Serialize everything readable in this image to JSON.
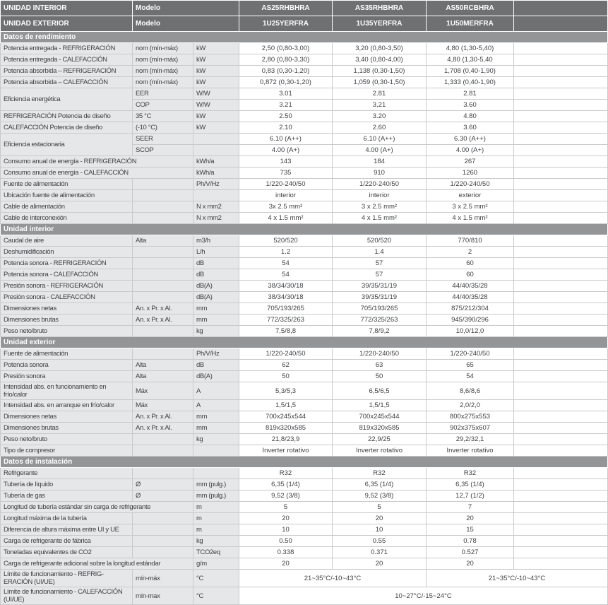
{
  "colors": {
    "header_bg": "#6e7072",
    "section_bg": "#939597",
    "label_bg": "#e6e7e8",
    "data_bg": "#ffffff",
    "border": "#c8cacc",
    "text": "#3f4144",
    "header_text": "#ffffff"
  },
  "table": {
    "rows": [
      {
        "t": "h",
        "label": "UNIDAD INTERIOR",
        "model": "Modelo",
        "values": [
          "AS25RHBHRA",
          "AS35RHBHRA",
          "AS50RCBHRA",
          ""
        ]
      },
      {
        "t": "h",
        "label": "UNIDAD EXTERIOR",
        "model": "Modelo",
        "values": [
          "1U25YERFRA",
          "1U35YERFRA",
          "1U50MERFRA",
          ""
        ]
      },
      {
        "t": "s",
        "label": "Datos de rendimiento"
      },
      {
        "label": "Potencia entregada - REFRIGERACIÓN",
        "sub": "nom (mín-máx)",
        "unit": "kW",
        "values": [
          "2,50 (0,80-3,00)",
          "3,20 (0,80-3,50)",
          "4,80 (1,30-5,40)",
          ""
        ]
      },
      {
        "label": "Potencia entregada - CALEFACCIÓN",
        "sub": "nom (mín-máx)",
        "unit": "kW",
        "values": [
          "2,80 (0,80-3,30)",
          "3,40 (0,80-4,00)",
          "4,80 (1,30-5,40",
          ""
        ]
      },
      {
        "label": "Potencia absorbida – REFRIGERACIÓN",
        "sub": "nom (mín-máx)",
        "unit": "kW",
        "values": [
          "0,83 (0,30-1,20)",
          "1,138 (0,30-1,50)",
          "1,708 (0,40-1,90)",
          ""
        ]
      },
      {
        "label": "Potencia absorbida – CALEFACCIÓN",
        "sub": "nom (mín-máx)",
        "unit": "kW",
        "values": [
          "0,872 (0,30-1,20)",
          "1,059 (0,30-1,50)",
          "1,333 (0,40-1,90)",
          ""
        ]
      },
      {
        "group": "start",
        "label": "Eficiencia energética",
        "sub": "EER",
        "unit": "W/W",
        "values": [
          "3.01",
          "2.81",
          "2.81",
          ""
        ]
      },
      {
        "group": "cont",
        "sub": "COP",
        "unit": "W/W",
        "values": [
          "3.21",
          "3,21",
          "3.60",
          ""
        ]
      },
      {
        "label": "REFRIGERACIÓN Potencia de diseño",
        "sub": "35 °C",
        "unit": "kW",
        "values": [
          "2.50",
          "3.20",
          "4.80",
          ""
        ]
      },
      {
        "label": "CALEFACCIÓN Potencia de diseño",
        "sub": "(-10 °C)",
        "unit": "kW",
        "values": [
          "2.10",
          "2.60",
          "3.60",
          ""
        ]
      },
      {
        "group": "start",
        "label": "Eficiencia estacionaria",
        "sub": "SEER",
        "unit": "",
        "values": [
          "6.10 (A++)",
          "6.10 (A++)",
          "6.30 (A++)",
          ""
        ]
      },
      {
        "group": "cont",
        "sub": "SCOP",
        "unit": "",
        "values": [
          "4.00 (A+)",
          "4.00 (A+)",
          "4.00 (A+)",
          ""
        ]
      },
      {
        "label": "Consumo anual de energía - REFRIGERACIÓN",
        "span2": true,
        "unit": "kWh/a",
        "values": [
          "143",
          "184",
          "267",
          ""
        ]
      },
      {
        "label": "Consumo anual de energía - CALEFACCIÓN",
        "span2": true,
        "unit": "kWh/a",
        "values": [
          "735",
          "910",
          "1260",
          ""
        ]
      },
      {
        "label": "Fuente de alimentación",
        "sub": "",
        "unit": "Ph/V/Hz",
        "values": [
          "1/220-240/50",
          "1/220-240/50",
          "1/220-240/50",
          ""
        ]
      },
      {
        "label": "Ubicación fuente de alimentación",
        "sub": "",
        "unit": "",
        "values": [
          "interior",
          "interior",
          "exterior",
          ""
        ]
      },
      {
        "label": "Cable de alimentación",
        "sub": "",
        "unit": "N x mm2",
        "values": [
          "3x 2.5 mm²",
          "3 x 2.5 mm²",
          "3 x 2.5 mm²",
          ""
        ]
      },
      {
        "label": "Cable de interconexión",
        "sub": "",
        "unit": "N x mm2",
        "values": [
          "4 x 1.5 mm²",
          "4 x 1.5 mm²",
          "4 x 1.5 mm²",
          ""
        ]
      },
      {
        "t": "s",
        "label": "Unidad interior"
      },
      {
        "label": "Caudal de aire",
        "sub": "Alta",
        "unit": "m3/h",
        "values": [
          "520/520",
          "520/520",
          "770/810",
          ""
        ]
      },
      {
        "label": "Deshumidificación",
        "sub": "",
        "unit": "L/h",
        "values": [
          "1.2",
          "1.4",
          "2",
          ""
        ]
      },
      {
        "label": "Potencia sonora - REFRIGERACIÓN",
        "sub": "",
        "unit": "dB",
        "values": [
          "54",
          "57",
          "60",
          ""
        ]
      },
      {
        "label": "Potencia sonora - CALEFACCIÓN",
        "sub": "",
        "unit": "dB",
        "values": [
          "54",
          "57",
          "60",
          ""
        ]
      },
      {
        "label": "Presión sonora - REFRIGERACIÓN",
        "sub": "",
        "unit": "dB(A)",
        "values": [
          "38/34/30/18",
          "39/35/31/19",
          "44/40/35/28",
          ""
        ]
      },
      {
        "label": "Presión sonora - CALEFACCIÓN",
        "sub": "",
        "unit": "dB(A)",
        "values": [
          "38/34/30/18",
          "39/35/31/19",
          "44/40/35/28",
          ""
        ]
      },
      {
        "label": "Dimensiones netas",
        "sub": "An. x Pr. x Al.",
        "unit": "mm",
        "values": [
          "705/193/265",
          "705/193/265",
          "875/212/304",
          ""
        ]
      },
      {
        "label": "Dimensiones brutas",
        "sub": "An. x Pr. x Al.",
        "unit": "mm",
        "values": [
          "772/325/263",
          "772/325/263",
          "945/390/296",
          ""
        ]
      },
      {
        "label": "Peso neto/bruto",
        "sub": "",
        "unit": "kg",
        "values": [
          "7,5/8,8",
          "7,8/9,2",
          "10,0/12,0",
          ""
        ]
      },
      {
        "t": "s",
        "label": "Unidad exterior"
      },
      {
        "label": "Fuente de alimentación",
        "sub": "",
        "unit": "Ph/V/Hz",
        "values": [
          "1/220-240/50",
          "1/220-240/50",
          "1/220-240/50",
          ""
        ]
      },
      {
        "label": "Potencia sonora",
        "sub": "Alta",
        "unit": "dB",
        "values": [
          "62",
          "63",
          "65",
          ""
        ]
      },
      {
        "label": "Presión sonora",
        "sub": "Alta",
        "unit": "dB(A)",
        "values": [
          "50",
          "50",
          "54",
          ""
        ]
      },
      {
        "label": "Intensidad abs. en funcionamiento en frío/calor",
        "sub": "Máx",
        "unit": "A",
        "values": [
          "5,3/5,3",
          "6,5/6,5",
          "8,6/8,6",
          ""
        ]
      },
      {
        "label": "Intensidad abs. en arranque en frío/calor",
        "sub": "Máx",
        "unit": "A",
        "values": [
          "1,5/1,5",
          "1,5/1,5",
          "2,0/2,0",
          ""
        ]
      },
      {
        "label": "Dimensiones netas",
        "sub": "An. x Pr. x Al.",
        "unit": "mm",
        "values": [
          "700x245x544",
          "700x245x544",
          "800x275x553",
          ""
        ]
      },
      {
        "label": "Dimensiones brutas",
        "sub": "An. x Pr. x Al.",
        "unit": "mm",
        "values": [
          "819x320x585",
          "819x320x585",
          "902x375x607",
          ""
        ]
      },
      {
        "label": "Peso neto/bruto",
        "sub": "",
        "unit": "kg",
        "values": [
          "21,8/23,9",
          "22,9/25",
          "29,2/32,1",
          ""
        ]
      },
      {
        "label": "Tipo de compresor",
        "sub": "",
        "unit": "",
        "values": [
          "Inverter rotativo",
          "Inverter rotativo",
          "Inverter rotativo",
          ""
        ]
      },
      {
        "t": "s",
        "label": "Datos de instalación"
      },
      {
        "label": "Refrigerante",
        "sub": "",
        "unit": "",
        "values": [
          "R32",
          "R32",
          "R32",
          ""
        ]
      },
      {
        "label": "Tubería de líquido",
        "sub": "Ø",
        "unit": "mm (pulg.)",
        "values": [
          "6,35 (1/4)",
          "6,35 (1/4)",
          "6,35 (1/4)",
          ""
        ]
      },
      {
        "label": "Tubería de gas",
        "sub": "Ø",
        "unit": "mm (pulg.)",
        "values": [
          "9,52 (3/8)",
          "9,52 (3/8)",
          "12,7 (1/2)",
          ""
        ]
      },
      {
        "label": "Longitud de tubería estándar sin carga de refrigerante",
        "span2": true,
        "unit": "m",
        "values": [
          "5",
          "5",
          "7",
          ""
        ]
      },
      {
        "label": "Longitud máxima de la tubería",
        "sub": "",
        "unit": "m",
        "values": [
          "20",
          "20",
          "20",
          ""
        ]
      },
      {
        "label": "Diferencia de altura máxima entre UI y UE",
        "sub": "",
        "unit": "m",
        "values": [
          "10",
          "10",
          "15",
          ""
        ]
      },
      {
        "label": "Carga de refrigerante de fábrica",
        "sub": "",
        "unit": "kg",
        "values": [
          "0.50",
          "0.55",
          "0.78",
          ""
        ]
      },
      {
        "label": "Toneladas equivalentes de CO2",
        "sub": "",
        "unit": "TCO2eq",
        "values": [
          "0.338",
          "0.371",
          "0.527",
          ""
        ]
      },
      {
        "label": "Carga de refrigerante adicional sobre la longitud estándar",
        "span2": true,
        "unit": "g/m",
        "values": [
          "20",
          "20",
          "20",
          ""
        ]
      },
      {
        "label": "Límite de funcionamiento - REFRIG-ERACIÓN (UI/UE)",
        "sub": "mín-máx",
        "unit": "°C",
        "values": [
          {
            "text": "21~35°C/-10~43°C",
            "span": 2
          },
          {
            "text": "21~35°C/-10~43°C",
            "span": 2
          }
        ]
      },
      {
        "label": "Límite de funcionamiento - CALEFACCIÓN (UI/UE)",
        "sub": "mín-max",
        "unit": "°C",
        "values": [
          {
            "text": "10~27°C/-15~24°C",
            "span": 4
          }
        ]
      }
    ]
  }
}
